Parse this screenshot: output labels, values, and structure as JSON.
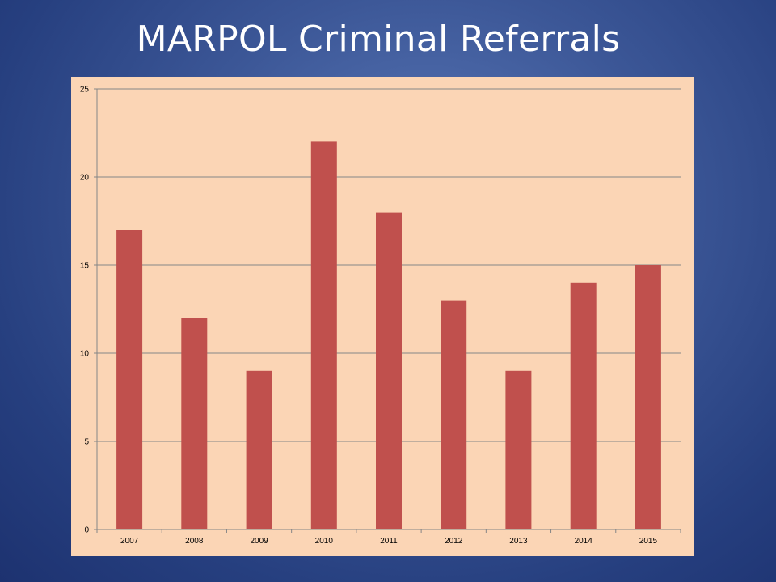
{
  "slide": {
    "title": "MARPOL Criminal Referrals"
  },
  "colors": {
    "background": "#2f4a8c",
    "plot_area": "#fbd5b5",
    "bar": "#c0504d",
    "gridline": "#868686",
    "title_text": "#ffffff"
  },
  "chart_data": {
    "type": "bar",
    "title": "",
    "xlabel": "",
    "ylabel": "",
    "categories": [
      "2007",
      "2008",
      "2009",
      "2010",
      "2011",
      "2012",
      "2013",
      "2014",
      "2015"
    ],
    "values": [
      17,
      12,
      9,
      22,
      18,
      13,
      9,
      14,
      15
    ],
    "ylim": [
      0,
      25
    ],
    "yticks": [
      "0",
      "5",
      "10",
      "15",
      "20",
      "25"
    ],
    "grid": true,
    "legend": "none"
  }
}
